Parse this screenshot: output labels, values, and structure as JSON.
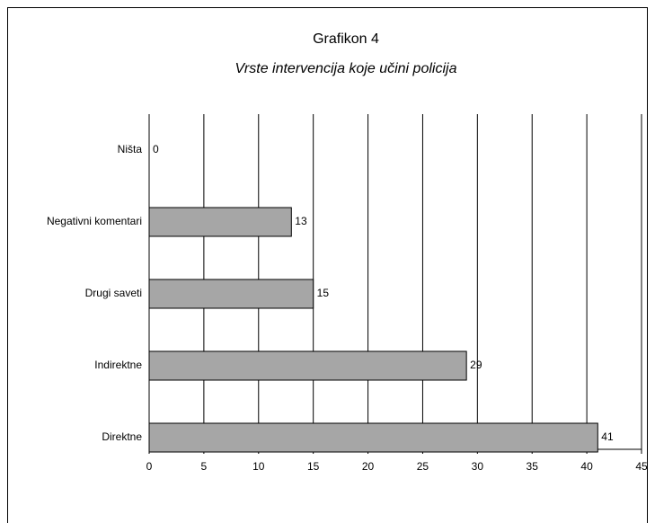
{
  "chart_data": {
    "type": "bar",
    "orientation": "horizontal",
    "title": "Grafikon 4",
    "subtitle": "Vrste intervencija koje učini policija",
    "categories": [
      "Ništa",
      "Negativni komentari",
      "Drugi saveti",
      "Indirektne",
      "Direktne"
    ],
    "values": [
      0,
      13,
      15,
      29,
      41
    ],
    "color": "#a6a6a6",
    "xlim": [
      0,
      45
    ],
    "xticks": [
      0,
      5,
      10,
      15,
      20,
      25,
      30,
      35,
      40,
      45
    ],
    "grid": true
  }
}
